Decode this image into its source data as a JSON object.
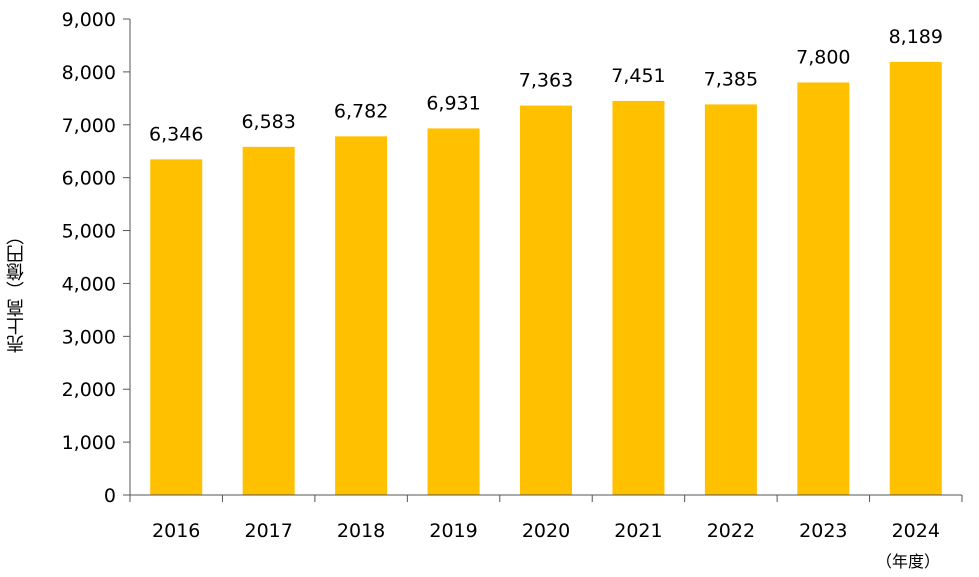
{
  "chart_data": {
    "type": "bar",
    "title": "",
    "xlabel": "",
    "x_unit": "（年度）",
    "ylabel": "売上高（億円）",
    "ylim": [
      0,
      9000
    ],
    "yticks": [
      0,
      1000,
      2000,
      3000,
      4000,
      5000,
      6000,
      7000,
      8000,
      9000
    ],
    "ytick_labels": [
      "0",
      "1,000",
      "2,000",
      "3,000",
      "4,000",
      "5,000",
      "6,000",
      "7,000",
      "8,000",
      "9,000"
    ],
    "categories": [
      "2016",
      "2017",
      "2018",
      "2019",
      "2020",
      "2021",
      "2022",
      "2023",
      "2024"
    ],
    "values": [
      6346,
      6583,
      6782,
      6931,
      7363,
      7451,
      7385,
      7800,
      8189
    ],
    "data_labels": [
      "6,346",
      "6,583",
      "6,782",
      "6,931",
      "7,363",
      "7,451",
      "7,385",
      "7,800",
      "8,189"
    ],
    "bar_color": "#FFC000",
    "grid": false,
    "legend": "none"
  }
}
